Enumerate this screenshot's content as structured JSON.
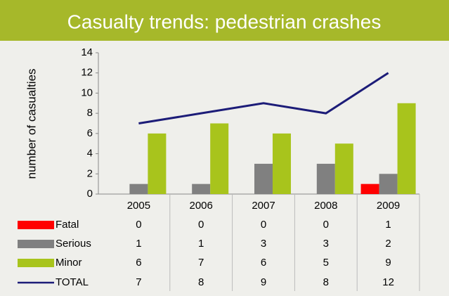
{
  "chart_data": {
    "type": "bar",
    "title": "Casualty trends: pedestrian crashes",
    "y_label": "number of casualties",
    "categories": [
      "2005",
      "2006",
      "2007",
      "2008",
      "2009"
    ],
    "series": [
      {
        "name": "Fatal",
        "color": "#ff0000",
        "values": [
          0,
          0,
          0,
          0,
          1
        ]
      },
      {
        "name": "Serious",
        "color": "#808080",
        "values": [
          1,
          1,
          3,
          3,
          2
        ]
      },
      {
        "name": "Minor",
        "color": "#a8c41c",
        "values": [
          6,
          7,
          6,
          5,
          9
        ]
      },
      {
        "name": "TOTAL",
        "type": "line",
        "color": "#1c1c78",
        "values": [
          7,
          8,
          9,
          8,
          12
        ]
      }
    ],
    "ylim": [
      0,
      14
    ],
    "yticks": [
      0,
      2,
      4,
      6,
      8,
      10,
      12,
      14
    ],
    "grid": false
  }
}
